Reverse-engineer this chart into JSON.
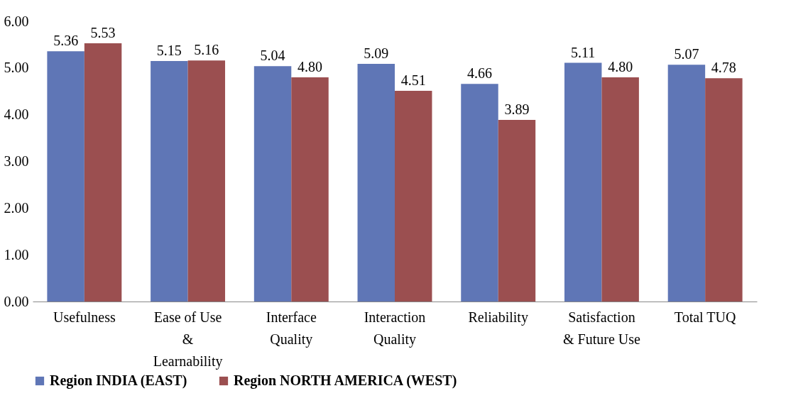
{
  "chart_data": {
    "type": "bar",
    "categories": [
      "Usefulness",
      "Ease of Use\n&\nLearnability",
      "Interface\nQuality",
      "Interaction\nQuality",
      "Reliability",
      "Satisfaction\n& Future Use",
      "Total TUQ"
    ],
    "series": [
      {
        "name": "Region INDIA (EAST)",
        "color": "#5f76b6",
        "values": [
          5.36,
          5.15,
          5.04,
          5.09,
          4.66,
          5.11,
          5.07
        ],
        "value_labels": [
          "5.36",
          "5.15",
          "5.04",
          "5.09",
          "4.66",
          "5.11",
          "5.07"
        ]
      },
      {
        "name": "Region NORTH AMERICA (WEST)",
        "color": "#9b4f50",
        "values": [
          5.53,
          5.16,
          4.8,
          4.51,
          3.89,
          4.8,
          4.78
        ],
        "value_labels": [
          "5.53",
          "5.16",
          "4.80",
          "4.51",
          "3.89",
          "4.80",
          "4.78"
        ]
      }
    ],
    "ylim": [
      0,
      6
    ],
    "yticks": [
      {
        "value": 0,
        "label": "0.00"
      },
      {
        "value": 1,
        "label": "1.00"
      },
      {
        "value": 2,
        "label": "2.00"
      },
      {
        "value": 3,
        "label": "3.00"
      },
      {
        "value": 4,
        "label": "4.00"
      },
      {
        "value": 5,
        "label": "5.00"
      },
      {
        "value": 6,
        "label": "6.00"
      }
    ],
    "grid": false,
    "legend": "bottom"
  }
}
